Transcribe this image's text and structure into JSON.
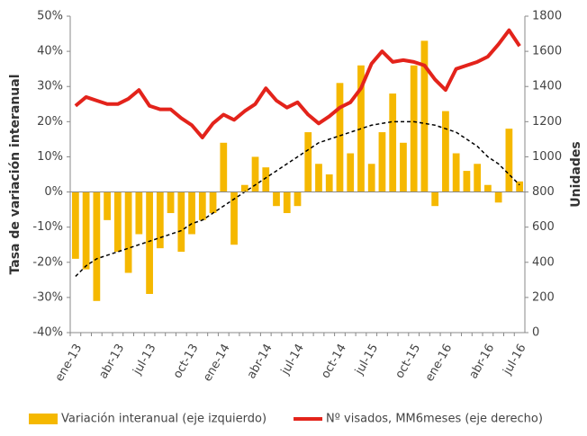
{
  "chart_data": {
    "type": "bar_line",
    "y_label": "Tasa de variación interanual",
    "y2_label": "Unidades",
    "categories": [
      "ene-13",
      null,
      null,
      null,
      "abr-13",
      null,
      null,
      "jul-13",
      null,
      null,
      null,
      "oct-13",
      null,
      null,
      "ene-14",
      null,
      null,
      null,
      "abr-14",
      null,
      null,
      "jul-14",
      null,
      null,
      null,
      "oct-14",
      null,
      null,
      "jul-15",
      null,
      null,
      null,
      "oct-15",
      null,
      null,
      "ene-16",
      null,
      null,
      null,
      "abr-16",
      null,
      null,
      "jul-16"
    ],
    "series": [
      {
        "name": "Variación interanual (eje izquierdo)",
        "type": "bar",
        "color": "#f5b800",
        "values": [
          -19,
          -22,
          -31,
          -8,
          -17,
          -23,
          -12,
          -29,
          -16,
          -6,
          -17,
          -12,
          -8,
          -6,
          14,
          -15,
          2,
          10,
          7,
          -4,
          -6,
          -4,
          17,
          8,
          5,
          31,
          11,
          36,
          8,
          17,
          28,
          14,
          36,
          43,
          -4,
          23,
          11,
          6,
          8,
          2,
          -3,
          18,
          3
        ]
      },
      {
        "name": "Nº visados, MM6meses (eje derecho)",
        "type": "line",
        "axis": "y2",
        "color": "#e3231b",
        "values": [
          1290,
          1340,
          1320,
          1300,
          1300,
          1330,
          1380,
          1290,
          1270,
          1270,
          1220,
          1180,
          1110,
          1190,
          1240,
          1210,
          1260,
          1300,
          1390,
          1320,
          1280,
          1310,
          1240,
          1190,
          1230,
          1280,
          1310,
          1390,
          1530,
          1600,
          1540,
          1550,
          1540,
          1520,
          1440,
          1380,
          1500,
          1520,
          1540,
          1570,
          1640,
          1720,
          1630
        ]
      },
      {
        "type": "line",
        "dashed": true,
        "color": "#000000",
        "values": [
          -24,
          -21,
          -19,
          -18,
          -17,
          -16,
          -15,
          -14,
          -13,
          -12,
          -11,
          -9,
          -8,
          -6,
          -4,
          -2,
          0,
          2,
          4,
          6,
          8,
          10,
          12,
          14,
          15,
          16,
          17,
          18,
          19,
          19.5,
          20,
          20,
          20,
          19.5,
          19,
          18,
          17,
          15,
          13,
          10,
          8,
          5,
          2
        ]
      }
    ],
    "ylim": [
      -40,
      50
    ],
    "yticks": [
      {
        "value": -40,
        "label": "-40%"
      },
      {
        "value": -30,
        "label": "-30%"
      },
      {
        "value": -20,
        "label": "-20%"
      },
      {
        "value": -10,
        "label": "-10%"
      },
      {
        "value": 0,
        "label": "0%"
      },
      {
        "value": 10,
        "label": "10%"
      },
      {
        "value": 20,
        "label": "20%"
      },
      {
        "value": 30,
        "label": "30%"
      },
      {
        "value": 40,
        "label": "40%"
      },
      {
        "value": 50,
        "label": "50%"
      }
    ],
    "y2lim": [
      0,
      1800
    ],
    "y2ticks": [
      0,
      200,
      400,
      600,
      800,
      1000,
      1200,
      1400,
      1600,
      1800
    ],
    "grid": false,
    "legend": "bottom"
  }
}
